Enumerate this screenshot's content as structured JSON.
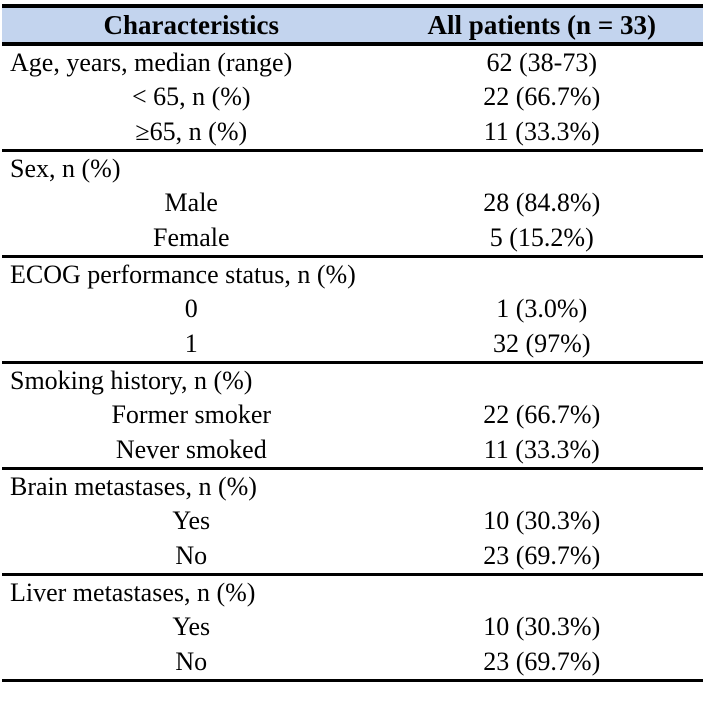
{
  "title": "Patient baseline characteristics table",
  "colors": {
    "header_bg": "#c3d4ee",
    "rule": "#000000",
    "text": "#000000",
    "background": "#ffffff"
  },
  "table": {
    "columns": [
      "Characteristics",
      "All patients (n = 33)"
    ],
    "sections": [
      {
        "header": {
          "label": "Age, years, median (range)",
          "value": "62 (38-73)"
        },
        "rows": [
          {
            "label": "< 65, n (%)",
            "value": "22 (66.7%)"
          },
          {
            "label": "≥65, n (%)",
            "value": "11 (33.3%)"
          }
        ]
      },
      {
        "header": {
          "label": "Sex, n (%)",
          "value": ""
        },
        "rows": [
          {
            "label": "Male",
            "value": "28 (84.8%)"
          },
          {
            "label": "Female",
            "value": "5 (15.2%)"
          }
        ]
      },
      {
        "header": {
          "label": "ECOG performance status, n (%)",
          "value": ""
        },
        "rows": [
          {
            "label": "0",
            "value": "1 (3.0%)"
          },
          {
            "label": "1",
            "value": "32 (97%)"
          }
        ]
      },
      {
        "header": {
          "label": "Smoking history, n (%)",
          "value": ""
        },
        "rows": [
          {
            "label": "Former smoker",
            "value": "22 (66.7%)"
          },
          {
            "label": "Never smoked",
            "value": "11 (33.3%)"
          }
        ]
      },
      {
        "header": {
          "label": "Brain metastases, n (%)",
          "value": ""
        },
        "rows": [
          {
            "label": "Yes",
            "value": "10 (30.3%)"
          },
          {
            "label": "No",
            "value": "23 (69.7%)"
          }
        ]
      },
      {
        "header": {
          "label": "Liver metastases, n (%)",
          "value": ""
        },
        "rows": [
          {
            "label": "Yes",
            "value": "10 (30.3%)"
          },
          {
            "label": "No",
            "value": "23 (69.7%)"
          }
        ]
      }
    ]
  }
}
